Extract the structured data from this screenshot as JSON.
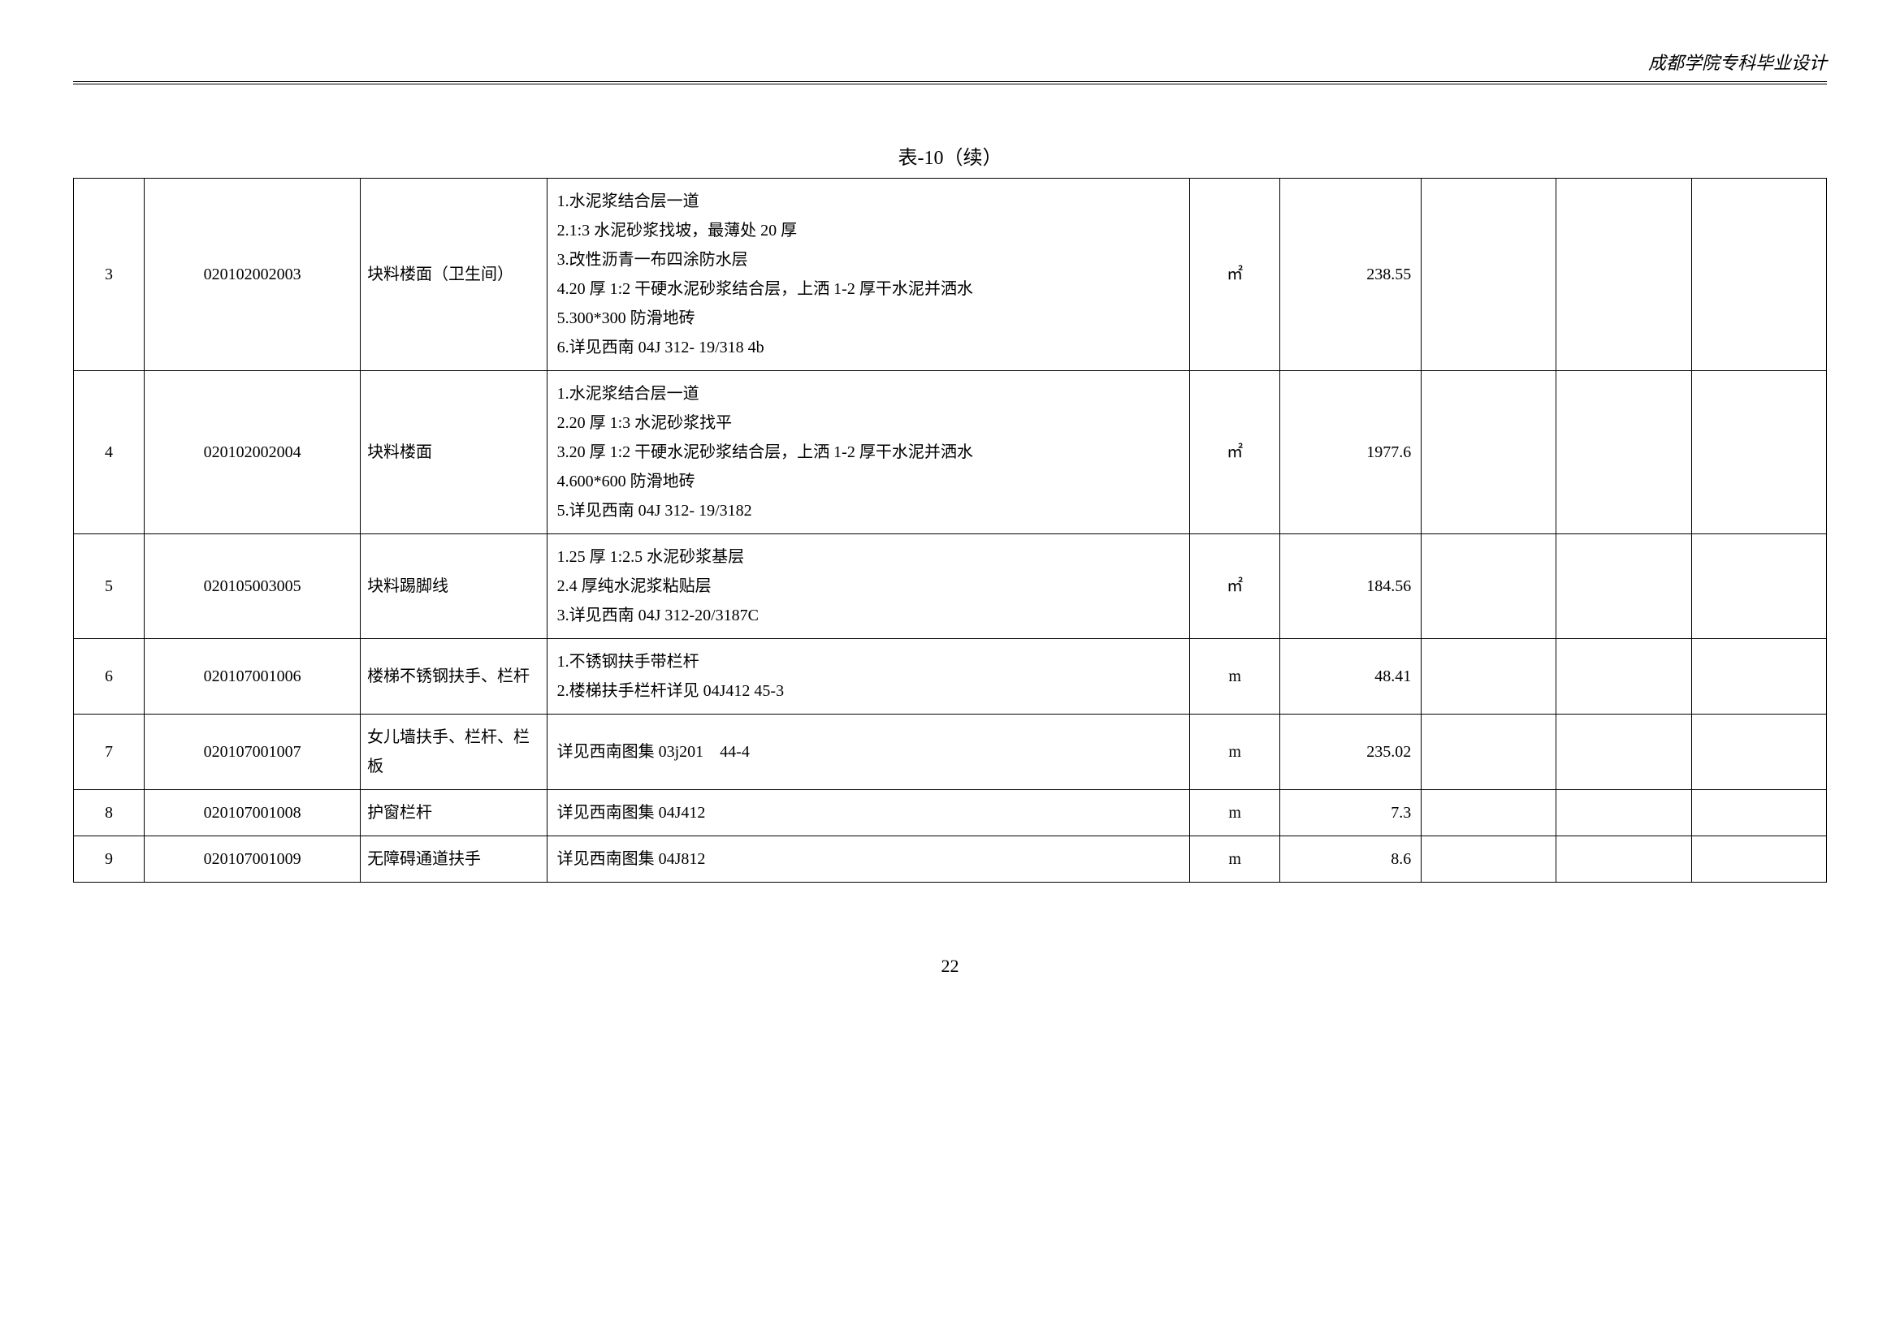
{
  "header": {
    "text": "成都学院专科毕业设计"
  },
  "table": {
    "title": "表-10（续）",
    "rows": [
      {
        "index": "3",
        "code": "020102002003",
        "name": "块料楼面（卫生间）",
        "desc_lines": [
          "1.水泥浆结合层一道",
          "2.1:3 水泥砂浆找坡，最薄处 20 厚",
          "3.改性沥青一布四涂防水层",
          "4.20 厚 1:2 干硬水泥砂浆结合层，上洒 1-2 厚干水泥并洒水",
          "5.300*300 防滑地砖",
          "6.详见西南 04J 312- 19/318 4b"
        ],
        "unit": "㎡",
        "qty": "238.55"
      },
      {
        "index": "4",
        "code": "020102002004",
        "name": "块料楼面",
        "desc_lines": [
          "1.水泥浆结合层一道",
          "2.20 厚 1:3 水泥砂浆找平",
          "3.20 厚 1:2 干硬水泥砂浆结合层，上洒 1-2 厚干水泥并洒水",
          "4.600*600 防滑地砖",
          "5.详见西南 04J 312- 19/3182"
        ],
        "unit": "㎡",
        "qty": "1977.6"
      },
      {
        "index": "5",
        "code": "020105003005",
        "name": "块料踢脚线",
        "desc_lines": [
          "1.25 厚 1:2.5 水泥砂浆基层",
          "2.4 厚纯水泥浆粘贴层",
          "3.详见西南 04J 312-20/3187C"
        ],
        "unit": "㎡",
        "qty": "184.56"
      },
      {
        "index": "6",
        "code": "020107001006",
        "name": "楼梯不锈钢扶手、栏杆",
        "desc_lines": [
          "1.不锈钢扶手带栏杆",
          "2.楼梯扶手栏杆详见 04J412 45-3"
        ],
        "unit": "m",
        "qty": "48.41"
      },
      {
        "index": "7",
        "code": "020107001007",
        "name": "女儿墙扶手、栏杆、栏板",
        "desc_lines": [
          "详见西南图集 03j201　44-4"
        ],
        "unit": "m",
        "qty": "235.02"
      },
      {
        "index": "8",
        "code": "020107001008",
        "name": "护窗栏杆",
        "desc_lines": [
          "详见西南图集 04J412"
        ],
        "unit": "m",
        "qty": "7.3"
      },
      {
        "index": "9",
        "code": "020107001009",
        "name": "无障碍通道扶手",
        "desc_lines": [
          "详见西南图集 04J812"
        ],
        "unit": "m",
        "qty": "8.6"
      }
    ]
  },
  "page_number": "22"
}
